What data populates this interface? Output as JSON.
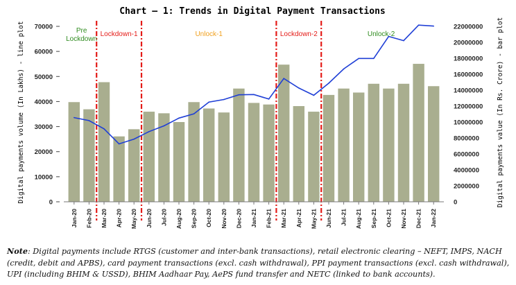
{
  "chart_data": {
    "type": "bar+line",
    "title": "Chart – 1: Trends in Digital Payment Transactions",
    "ylabel_left": "Digital payments volume (In Lakhs) - line plot",
    "ylabel_right": "Digital payments value (In Rs. Crore) - bar plot",
    "categories": [
      "Jan-20",
      "Feb-20",
      "Mar-20",
      "Apr-20",
      "May-20",
      "Jun-20",
      "Jul-20",
      "Aug-20",
      "Sep-20",
      "Oct-20",
      "Nov-20",
      "Dec-20",
      "Jan-21",
      "Feb-21",
      "Mar-21",
      "Apr-21",
      "May-21",
      "Jun-21",
      "Jul-21",
      "Aug-21",
      "Sep-21",
      "Oct-21",
      "Nov-21",
      "Dec-21",
      "Jan-22"
    ],
    "left_axis": {
      "min": 0,
      "max": 70000,
      "ticks": [
        "0",
        "10000",
        "20000",
        "30000",
        "40000",
        "50000",
        "60000",
        "70000"
      ]
    },
    "right_axis": {
      "min": 0,
      "max": 22000000,
      "ticks": [
        "0",
        "2000000",
        "4000000",
        "6000000",
        "8000000",
        "10000000",
        "12000000",
        "14000000",
        "16000000",
        "18000000",
        "20000000",
        "22000000"
      ]
    },
    "series": [
      {
        "name": "bar plot",
        "axis": "right",
        "type": "bar",
        "color": "#a9ae8f",
        "values": [
          12500000,
          11600000,
          15000000,
          8200000,
          9100000,
          11300000,
          11100000,
          10000000,
          12500000,
          11700000,
          11200000,
          14200000,
          12400000,
          12200000,
          17200000,
          12000000,
          11300000,
          13400000,
          14200000,
          13700000,
          14800000,
          14200000,
          14800000,
          17300000,
          14500000
        ]
      },
      {
        "name": "line plot",
        "axis": "left",
        "type": "line",
        "color": "#1f3fd6",
        "values": [
          33600,
          32400,
          29100,
          23100,
          25000,
          28000,
          30300,
          33400,
          35100,
          39800,
          40800,
          42700,
          42800,
          41000,
          49200,
          45400,
          42500,
          47300,
          53000,
          57200,
          57200,
          66000,
          64300,
          70500,
          70100
        ]
      }
    ],
    "phases": [
      {
        "label": "Pre\nLockdown",
        "color": "#2e8b1e"
      },
      {
        "label": "Lockdown-1",
        "color": "#e41b17"
      },
      {
        "label": "Unlock-1",
        "color": "#f0a01e"
      },
      {
        "label": "Lockdown-2",
        "color": "#e41b17"
      },
      {
        "label": "Unlock-2",
        "color": "#2e8b1e"
      }
    ],
    "divider_after_index": [
      1,
      4,
      13,
      16
    ],
    "divider_color": "#e41b17"
  },
  "note": {
    "prefix": "Note",
    "text": ": Digital payments include RTGS (customer and inter-bank transactions), retail electronic clearing – NEFT, IMPS, NACH (credit, debit and APBS), card payment transactions (excl. cash withdrawal), PPI payment transactions (excl. cash withdrawal), UPI (including BHIM & USSD), BHIM Aadhaar Pay, AePS fund transfer and NETC (linked to bank accounts)."
  }
}
